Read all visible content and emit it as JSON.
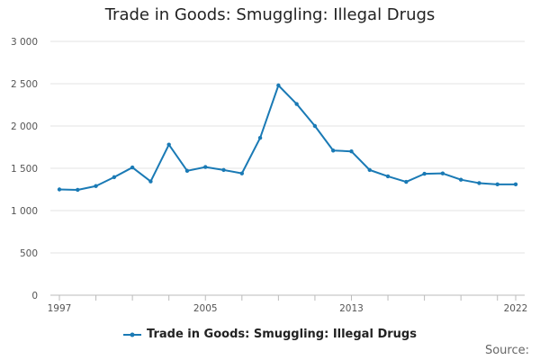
{
  "chart_data": {
    "type": "line",
    "title": "Trade in Goods: Smuggling: Illegal Drugs",
    "xlabel": "",
    "ylabel": "",
    "x": [
      1997,
      1998,
      1999,
      2000,
      2001,
      2002,
      2003,
      2004,
      2005,
      2006,
      2007,
      2008,
      2009,
      2010,
      2011,
      2012,
      2013,
      2014,
      2015,
      2016,
      2017,
      2018,
      2019,
      2020,
      2021,
      2022
    ],
    "x_tick_labels": [
      "1997",
      "2005",
      "2013",
      "2022"
    ],
    "ylim": [
      0,
      3000
    ],
    "y_ticks": [
      0,
      500,
      1000,
      1500,
      2000,
      2500,
      3000
    ],
    "y_tick_labels": [
      "0",
      "500",
      "1 000",
      "1 500",
      "2 000",
      "2 500",
      "3 000"
    ],
    "grid": true,
    "legend_position": "bottom",
    "series": [
      {
        "name": "Trade in Goods: Smuggling: Illegal Drugs",
        "color": "#1a7ab5",
        "values": [
          1250,
          1245,
          1290,
          1395,
          1510,
          1345,
          1780,
          1470,
          1515,
          1480,
          1440,
          1860,
          2480,
          2260,
          2000,
          1710,
          1700,
          1480,
          1405,
          1340,
          1435,
          1440,
          1365,
          1325,
          1310,
          1310
        ]
      }
    ],
    "source_label": "Source:"
  }
}
